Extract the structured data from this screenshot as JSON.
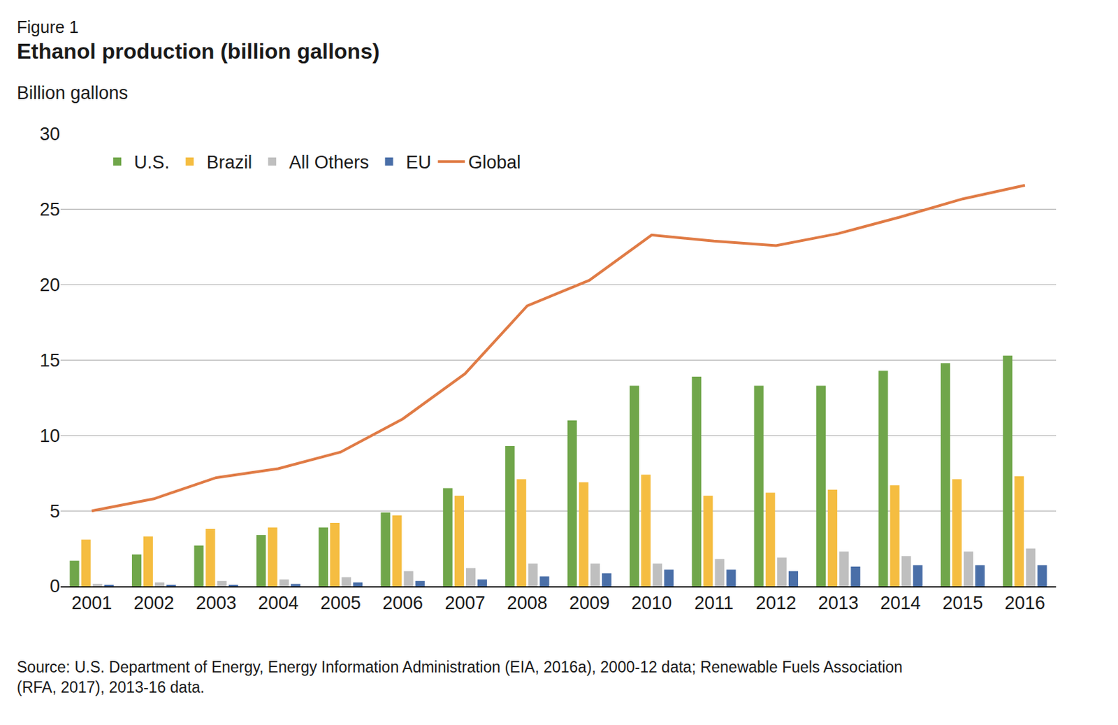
{
  "chart_data": {
    "type": "bar",
    "figure_label": "Figure 1",
    "title": "Ethanol production (billion gallons)",
    "ylabel": "Billion gallons",
    "source": [
      "Source: U.S. Department of Energy, Energy Information Administration (EIA, 2016a), 2000-12 data; Renewable Fuels Association",
      "(RFA, 2017), 2013-16 data."
    ],
    "categories": [
      "2001",
      "2002",
      "2003",
      "2004",
      "2005",
      "2006",
      "2007",
      "2008",
      "2009",
      "2010",
      "2011",
      "2012",
      "2013",
      "2014",
      "2015",
      "2016"
    ],
    "series": [
      {
        "name": "U.S.",
        "type": "bar",
        "color": "#70a64a",
        "values": [
          1.7,
          2.1,
          2.7,
          3.4,
          3.9,
          4.9,
          6.5,
          9.3,
          11.0,
          13.3,
          13.9,
          13.3,
          13.3,
          14.3,
          14.8,
          15.3
        ]
      },
      {
        "name": "Brazil",
        "type": "bar",
        "color": "#f5bd41",
        "values": [
          3.1,
          3.3,
          3.8,
          3.9,
          4.2,
          4.7,
          6.0,
          7.1,
          6.9,
          7.4,
          6.0,
          6.2,
          6.4,
          6.7,
          7.1,
          7.3
        ]
      },
      {
        "name": "All Others",
        "type": "bar",
        "color": "#bfbfbf",
        "values": [
          0.15,
          0.25,
          0.35,
          0.45,
          0.6,
          1.0,
          1.2,
          1.5,
          1.5,
          1.5,
          1.8,
          1.9,
          2.3,
          2.0,
          2.3,
          2.5
        ]
      },
      {
        "name": "EU",
        "type": "bar",
        "color": "#4a6fa8",
        "values": [
          0.05,
          0.05,
          0.05,
          0.15,
          0.25,
          0.35,
          0.45,
          0.65,
          0.85,
          1.1,
          1.1,
          1.0,
          1.3,
          1.4,
          1.4,
          1.4
        ]
      },
      {
        "name": "Global",
        "type": "line",
        "color": "#e07b45",
        "values": [
          5.0,
          5.8,
          7.2,
          7.8,
          8.9,
          11.1,
          14.1,
          18.6,
          20.3,
          23.3,
          22.9,
          22.6,
          23.4,
          24.5,
          25.7,
          26.6
        ]
      }
    ],
    "ylim": [
      0,
      30
    ],
    "yticks": [
      0,
      5,
      10,
      15,
      20,
      25,
      30
    ],
    "grid": true,
    "legend": "top"
  }
}
